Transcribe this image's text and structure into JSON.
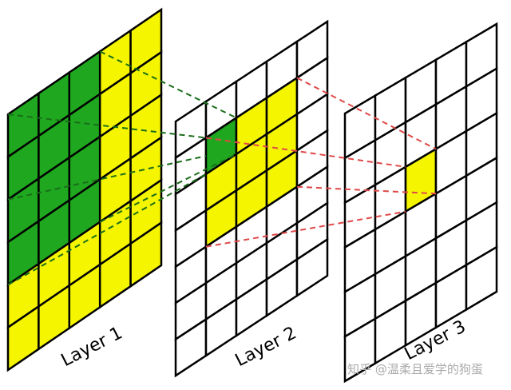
{
  "layers": [
    {
      "label": "Layer 1"
    },
    {
      "label": "Layer 2"
    },
    {
      "label": "Layer 3"
    }
  ],
  "watermark": "知乎 @温柔且爱学的狗蛋"
}
